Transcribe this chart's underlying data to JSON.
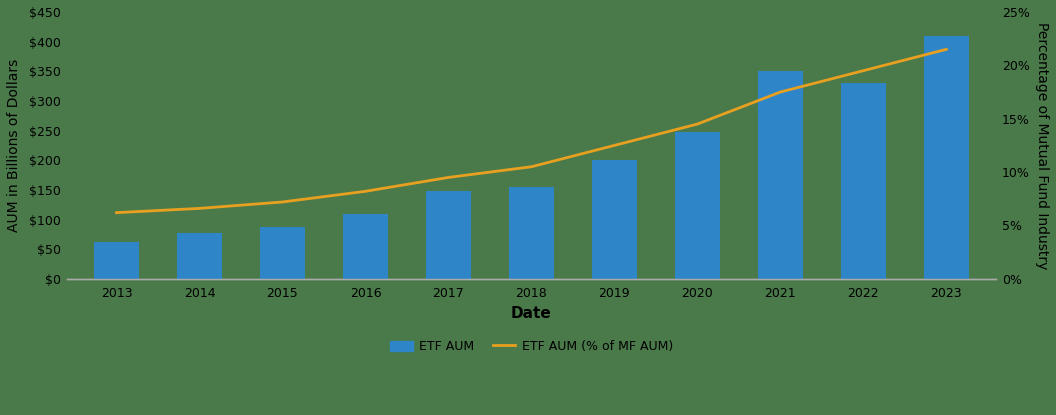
{
  "years": [
    2013,
    2014,
    2015,
    2016,
    2017,
    2018,
    2019,
    2020,
    2021,
    2022,
    2023
  ],
  "etf_aum": [
    62,
    78,
    88,
    110,
    148,
    155,
    200,
    248,
    350,
    330,
    410
  ],
  "etf_pct_mf": [
    6.2,
    6.6,
    7.2,
    8.2,
    9.5,
    10.5,
    12.5,
    14.5,
    17.5,
    19.5,
    21.5
  ],
  "bar_color": "#2E86C8",
  "line_color": "#E8A020",
  "background_color": "#4A7A4A",
  "plot_area_color": "#4A7A4A",
  "text_color": "#000000",
  "ylabel_left": "AUM in Billions of Dollars",
  "ylabel_right": "Percentage of Mutual Fund Industry",
  "xlabel": "Date",
  "ylim_left": [
    0,
    450
  ],
  "ylim_right": [
    0,
    25
  ],
  "yticks_left": [
    0,
    50,
    100,
    150,
    200,
    250,
    300,
    350,
    400,
    450
  ],
  "ytick_labels_left": [
    "$0",
    "$50",
    "$100",
    "$150",
    "$200",
    "$250",
    "$300",
    "$350",
    "$400",
    "$450"
  ],
  "yticks_right": [
    0,
    5,
    10,
    15,
    20,
    25
  ],
  "ytick_labels_right": [
    "0%",
    "5%",
    "10%",
    "15%",
    "20%",
    "25%"
  ],
  "legend_labels": [
    "ETF AUM",
    "ETF AUM (% of MF AUM)"
  ],
  "spine_color": "#AAAAAA",
  "axis_label_fontsize": 10,
  "tick_fontsize": 9,
  "legend_fontsize": 9,
  "xlabel_fontsize": 11,
  "bar_width": 0.55,
  "xlim": [
    2012.4,
    2023.6
  ]
}
